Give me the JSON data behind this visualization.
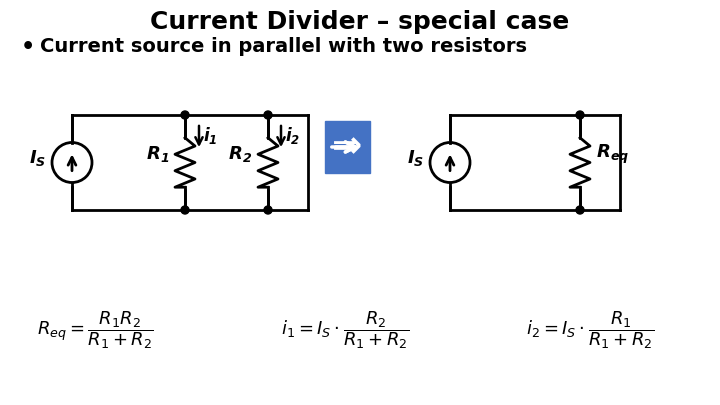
{
  "title": "Current Divider – special case",
  "subtitle": "Current source in parallel with two resistors",
  "background_color": "#ffffff",
  "title_fontsize": 18,
  "subtitle_fontsize": 14,
  "circuit_line_color": "#000000",
  "blue_box_color": "#4472C4",
  "line_width": 2.0,
  "formula1": "$R_{eq} = \\dfrac{R_1 R_2}{R_1 + R_2}$",
  "formula2": "$i_1 = I_S \\cdot \\dfrac{R_2}{R_1 + R_2}$",
  "formula3": "$i_2 = I_S \\cdot \\dfrac{R_1}{R_1 + R_2}$"
}
